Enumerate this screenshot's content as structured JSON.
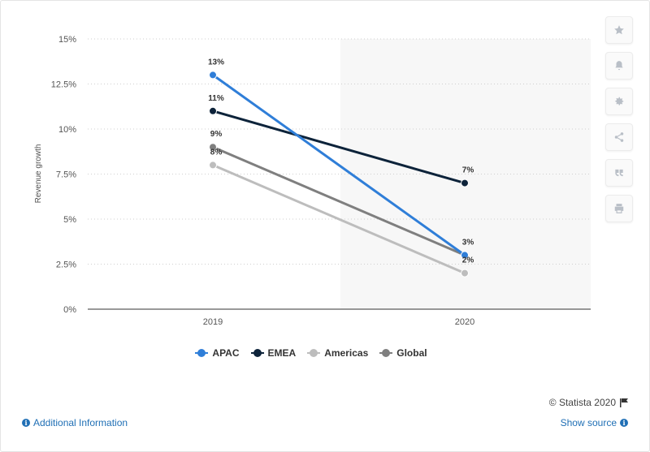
{
  "chart_data": {
    "type": "line",
    "categories": [
      "2019",
      "2020"
    ],
    "ylabel": "Revenue growth",
    "ylim": [
      0,
      15
    ],
    "yticks": [
      0,
      2.5,
      5,
      7.5,
      10,
      12.5,
      15
    ],
    "ytick_labels": [
      "0%",
      "2.5%",
      "5%",
      "7.5%",
      "10%",
      "12.5%",
      "15%"
    ],
    "grid": true,
    "legend_position": "bottom",
    "series": [
      {
        "name": "APAC",
        "values": [
          13,
          3
        ],
        "labels": [
          "13%",
          "3%"
        ],
        "color": "#2f7ed8"
      },
      {
        "name": "EMEA",
        "values": [
          11,
          7
        ],
        "labels": [
          "11%",
          "7%"
        ],
        "color": "#0d233a"
      },
      {
        "name": "Americas",
        "values": [
          8,
          2
        ],
        "labels": [
          "8%",
          "2%"
        ],
        "color": "#bdbdbd"
      },
      {
        "name": "Global",
        "values": [
          9,
          3
        ],
        "labels": [
          "9%",
          ""
        ],
        "color": "#7f7f7f"
      }
    ]
  },
  "sidebar": {
    "icons": [
      "star-icon",
      "bell-icon",
      "gear-icon",
      "share-icon",
      "quote-icon",
      "print-icon"
    ]
  },
  "footer": {
    "credits": "© Statista 2020",
    "additional_info": "Additional Information",
    "show_source": "Show source"
  }
}
